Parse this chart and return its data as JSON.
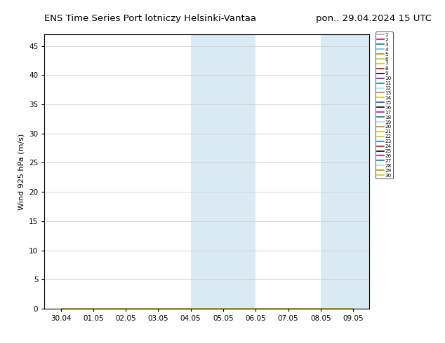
{
  "title_left": "ENS Time Series Port lotniczy Helsinki-Vantaa",
  "title_right": "pon.. 29.04.2024 15 UTC",
  "ylabel": "Wind 925 hPa (m/s)",
  "xlabel_ticks": [
    "30.04",
    "01.05",
    "02.05",
    "03.05",
    "04.05",
    "05.05",
    "06.05",
    "07.05",
    "08.05",
    "09.05"
  ],
  "ylim": [
    0,
    47
  ],
  "yticks": [
    0,
    5,
    10,
    15,
    20,
    25,
    30,
    35,
    40,
    45
  ],
  "background_color": "#ffffff",
  "shaded_color": "#daeaf5",
  "n_members": 30,
  "member_colors": [
    "#aaaaaa",
    "#cc00cc",
    "#008888",
    "#55bbff",
    "#cc8800",
    "#cccc00",
    "#cccc00",
    "#cc0000",
    "#000000",
    "#8800cc",
    "#008888",
    "#aaddff",
    "#cc8800",
    "#cccc00",
    "#0055cc",
    "#000000",
    "#cc00cc",
    "#008888",
    "#aaddff",
    "#cc8800",
    "#cccc00",
    "#cccc00",
    "#0088cc",
    "#cc0000",
    "#000000",
    "#cc00cc",
    "#008888",
    "#aaddff",
    "#cc8800",
    "#cccc00"
  ],
  "shaded_regions": [
    [
      4.0,
      5.0
    ],
    [
      5.0,
      6.0
    ],
    [
      8.0,
      9.0
    ],
    [
      9.0,
      9.5
    ]
  ],
  "xlim": [
    -0.5,
    9.5
  ],
  "n_days": 10,
  "title_fontsize": 9.5,
  "axis_fontsize": 8,
  "tick_fontsize": 7.5,
  "legend_fontsize": 5.2
}
